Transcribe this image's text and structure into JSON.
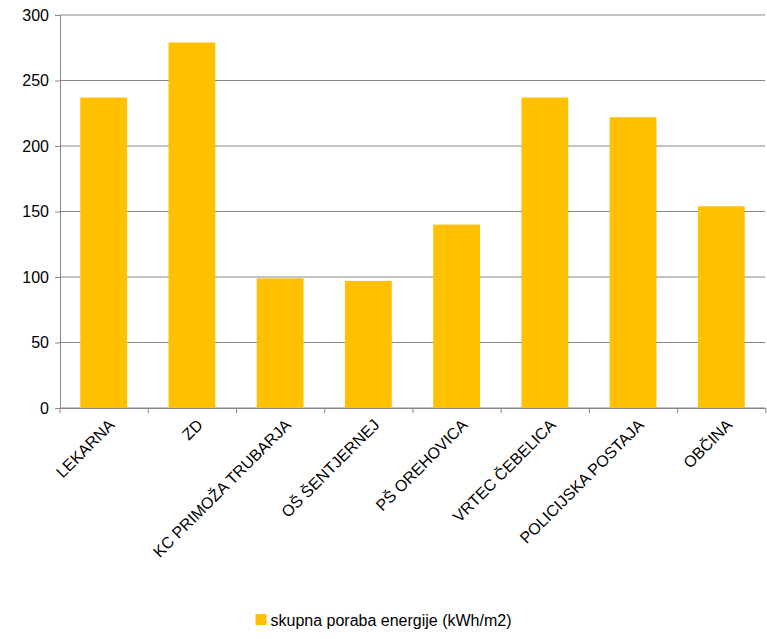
{
  "chart_data": {
    "type": "bar",
    "categories": [
      "LEKARNA",
      "ZD",
      "KC PRIMOŽA TRUBARJA",
      "OŠ ŠENTJERNEJ",
      "PŠ OREHOVICA",
      "VRTEC ČEBELICA",
      "POLICIJSKA POSTAJA",
      "OBČINA"
    ],
    "series": [
      {
        "name": "skupna poraba energije (kWh/m2)",
        "color": "#ffc000",
        "values": [
          237,
          279,
          99,
          97,
          140,
          237,
          222,
          154
        ]
      }
    ],
    "ylim": [
      0,
      300
    ],
    "yticks": [
      0,
      50,
      100,
      150,
      200,
      250,
      300
    ],
    "grid": true,
    "legend": "bottom"
  }
}
